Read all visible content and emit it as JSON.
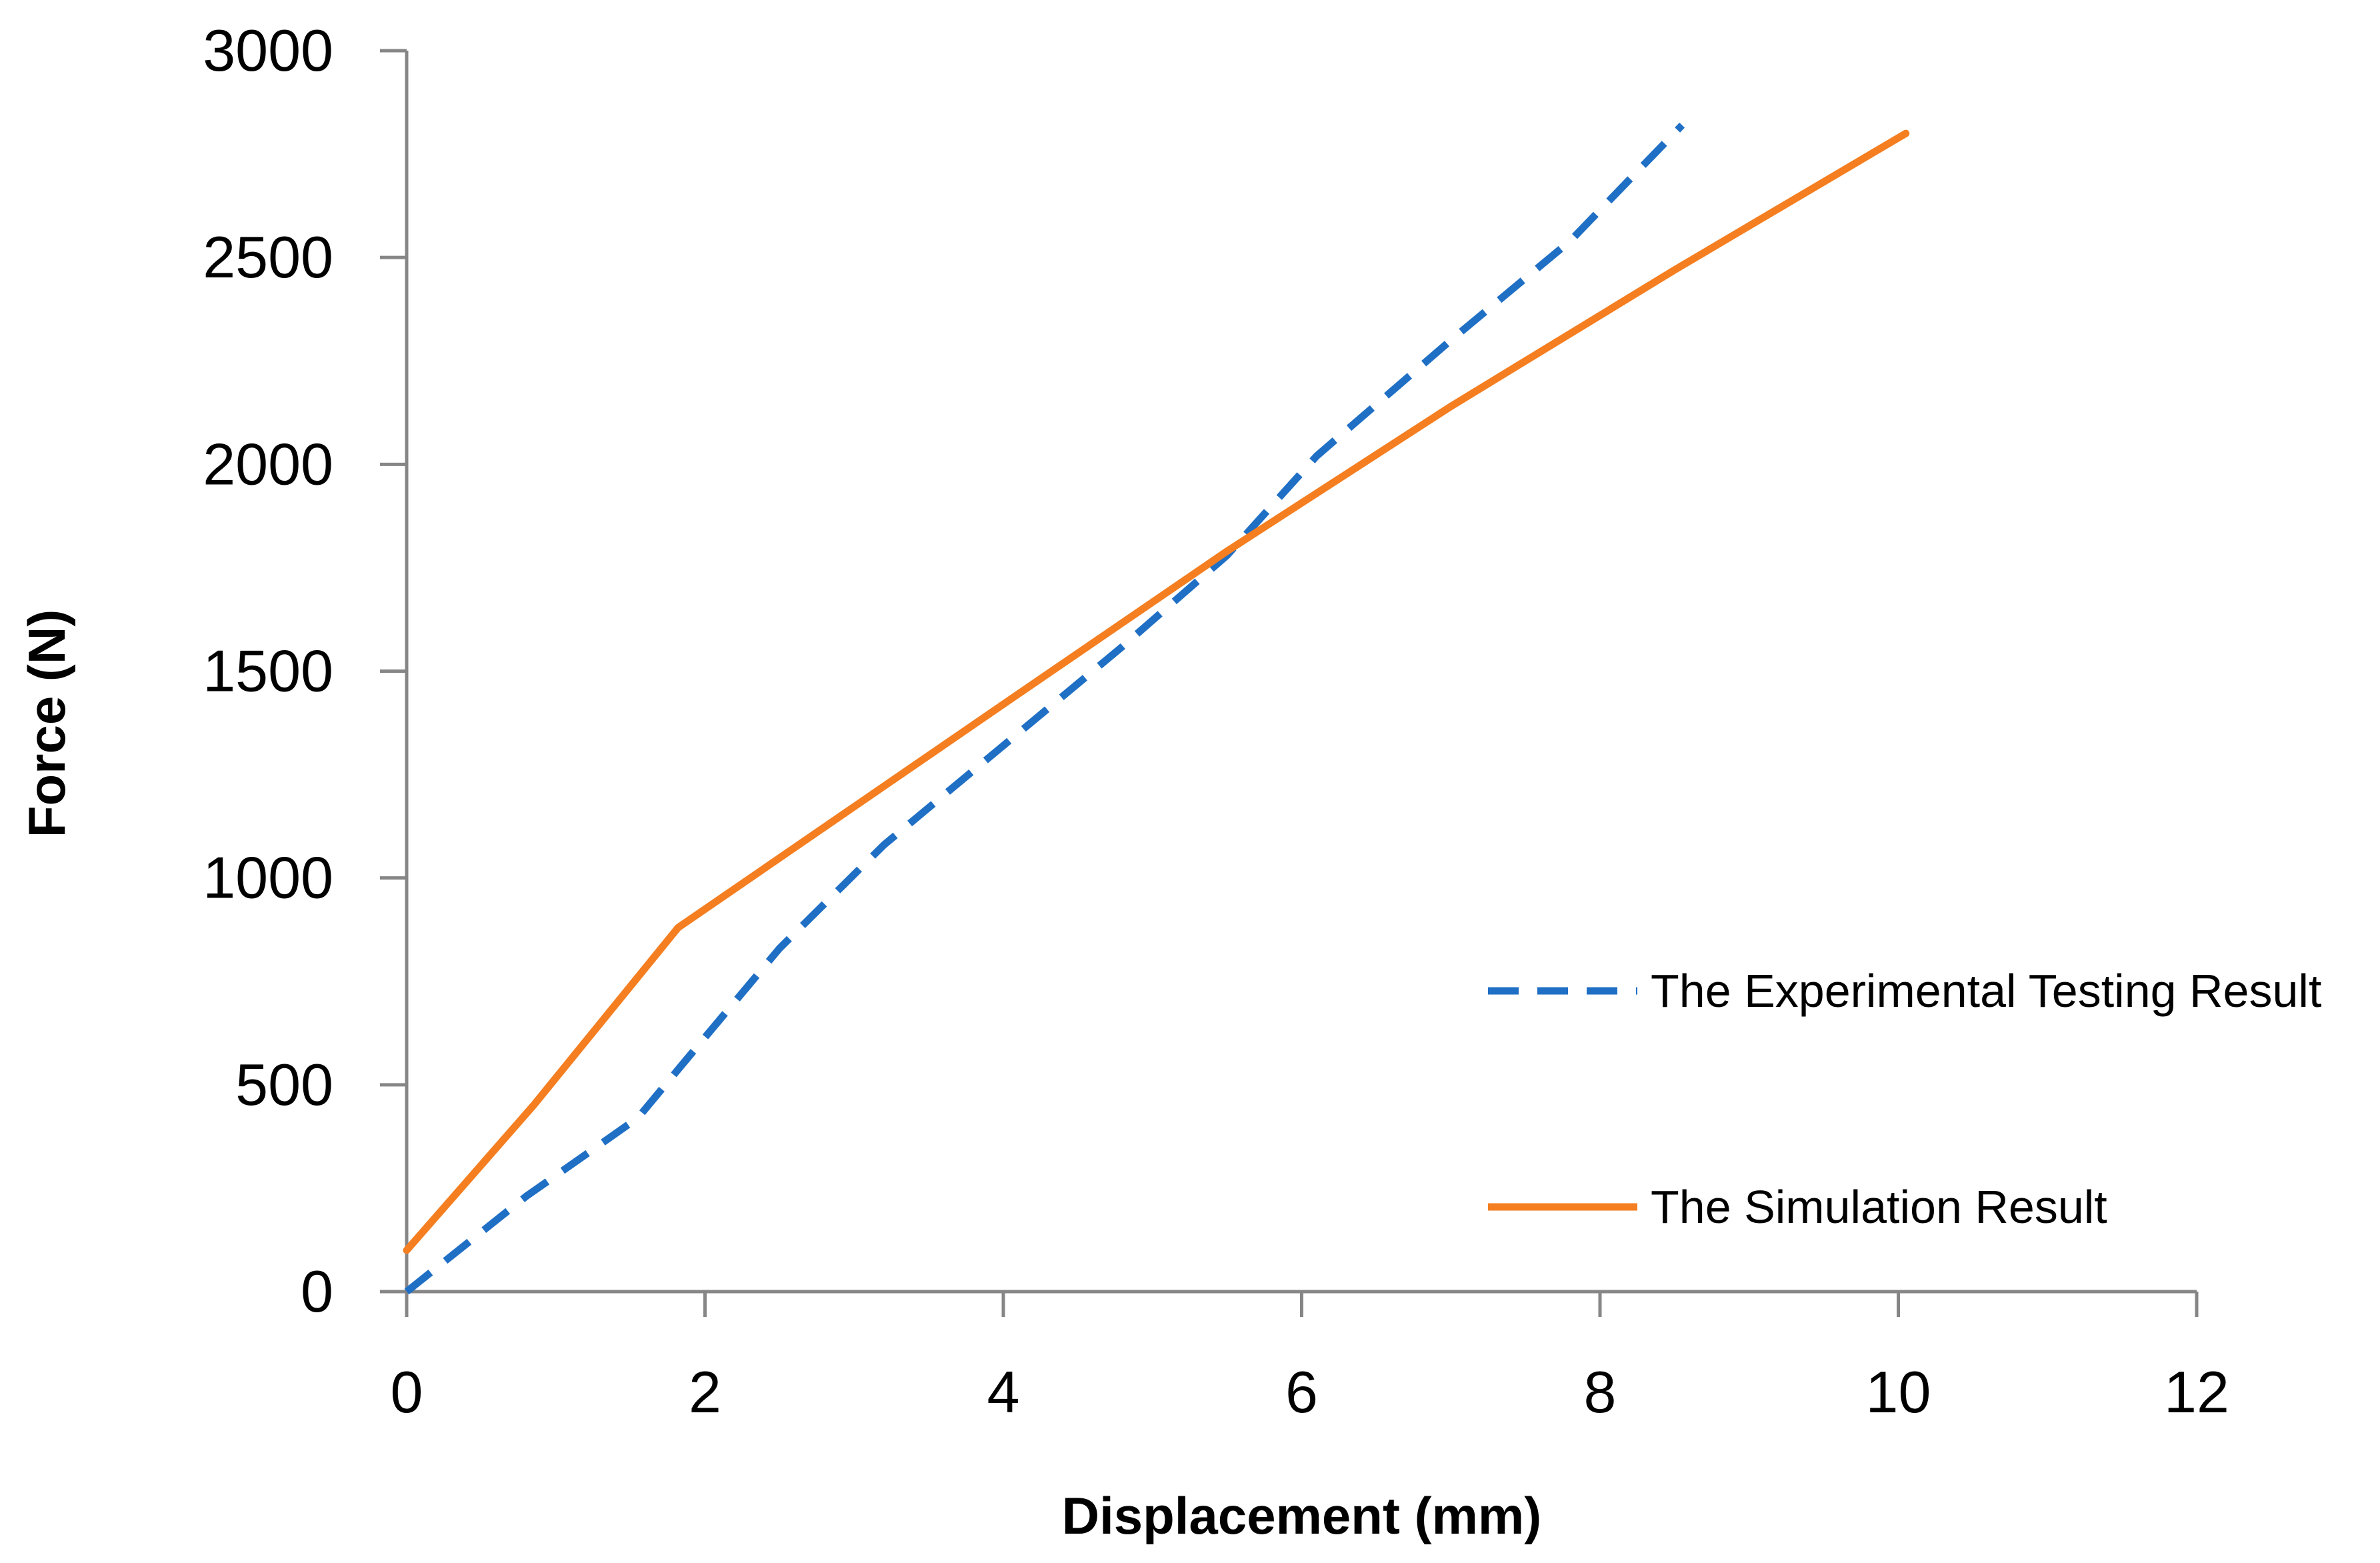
{
  "chart_data": {
    "type": "line",
    "title": "",
    "xlabel": "Displacement (mm)",
    "ylabel": "Force (N)",
    "xlim": [
      0,
      12
    ],
    "ylim": [
      0,
      3000
    ],
    "xticks": [
      0,
      2,
      4,
      6,
      8,
      10,
      12
    ],
    "yticks": [
      0,
      500,
      1000,
      1500,
      2000,
      2500,
      3000
    ],
    "grid": false,
    "legend_position": "right",
    "series": [
      {
        "name": "The Experimental Testing Result",
        "color": "#1F6FC5",
        "style": "dashed",
        "x": [
          0,
          0.8,
          1.55,
          1.85,
          2.5,
          3.2,
          4.0,
          4.8,
          5.5,
          6.1,
          7.0,
          7.8,
          8.55
        ],
        "y": [
          0,
          230,
          420,
          550,
          830,
          1080,
          1320,
          1560,
          1780,
          2020,
          2300,
          2540,
          2820
        ]
      },
      {
        "name": "The Simulation Result",
        "color": "#F47E20",
        "style": "solid",
        "x": [
          0,
          0.85,
          1.82,
          4.0,
          5.5,
          7.0,
          8.5,
          10.05
        ],
        "y": [
          100,
          450,
          880,
          1420,
          1790,
          2140,
          2470,
          2800
        ]
      }
    ]
  }
}
